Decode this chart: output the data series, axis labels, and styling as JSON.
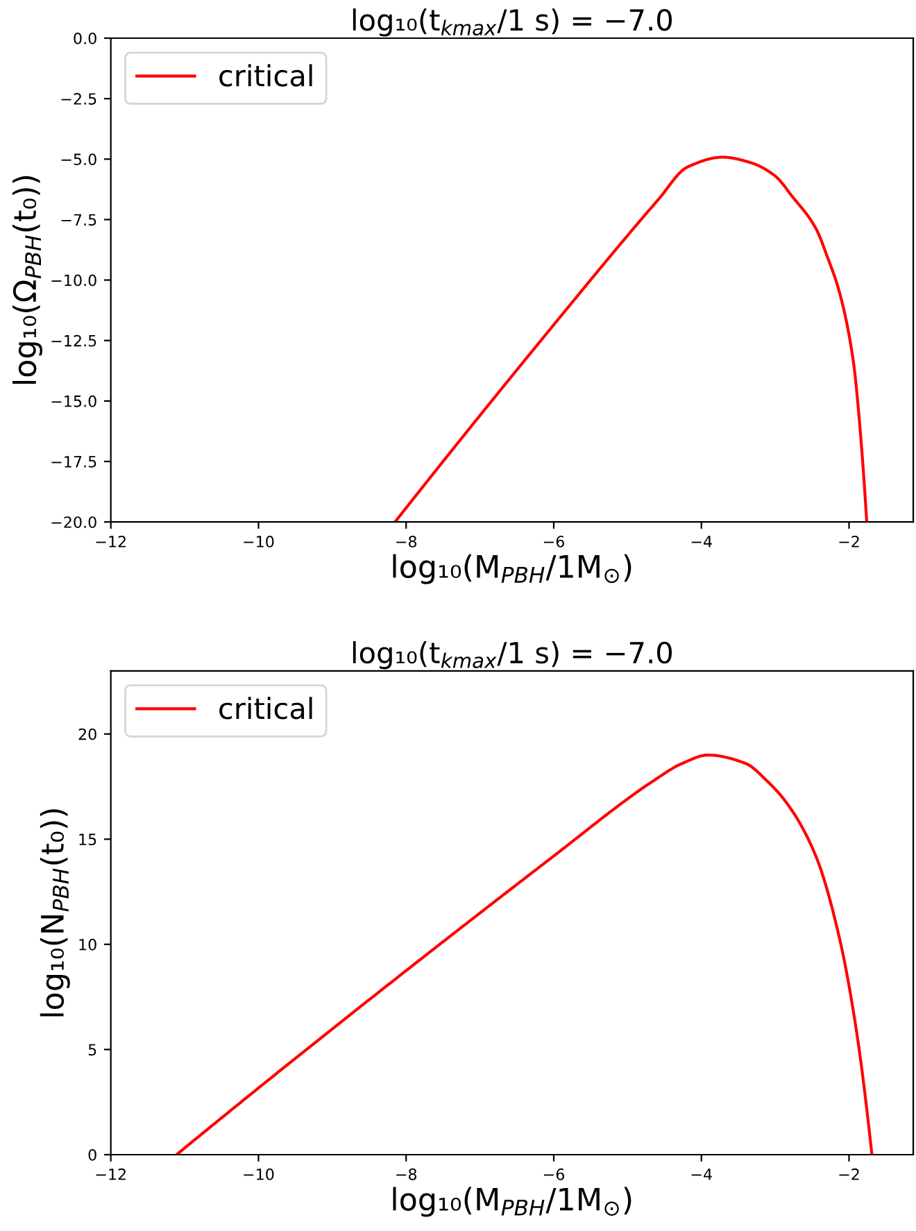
{
  "chart_data": [
    {
      "type": "line",
      "title": "log₁₀(t$_{kmax}$/1 s) = −7.0",
      "xlabel": "log₁₀(M$_{PBH}$/1M$_{⊙}$)",
      "ylabel": "log₁₀(Ω$_{PBH}$(t₀))",
      "series": [
        {
          "name": "critical",
          "color": "#ff0000",
          "x": [
            -8.15,
            -6.0,
            -4.58,
            -4.19,
            -3.71,
            -3.32,
            -3.0,
            -2.77,
            -2.45,
            -2.29,
            -2.13,
            -1.94,
            -1.86,
            -1.76
          ],
          "values": [
            -20.0,
            -11.85,
            -6.66,
            -5.33,
            -4.92,
            -5.16,
            -5.7,
            -6.54,
            -7.86,
            -9.07,
            -10.5,
            -13.4,
            -15.8,
            -20.0
          ]
        }
      ],
      "xlim": [
        -12,
        -1.13
      ],
      "ylim": [
        -20.0,
        0.0
      ],
      "xticks": [
        -12,
        -10,
        -8,
        -6,
        -4,
        -2
      ],
      "yticks": [
        {
          "value": -20,
          "label": "−20.0"
        },
        -17.5,
        {
          "value": -15,
          "label": "−15.0"
        },
        -12.5,
        {
          "value": -10,
          "label": "−10.0"
        },
        -7.5,
        {
          "value": -5,
          "label": "−5.0"
        },
        -2.5,
        {
          "value": 0,
          "label": "0.0"
        }
      ],
      "legend": "top left",
      "grid": false
    },
    {
      "type": "line",
      "title": "log₁₀(t$_{kmax}$/1 s) = −7.0",
      "xlabel": "log₁₀(M$_{PBH}$/1M$_{⊙}$)",
      "ylabel": "log₁₀(N$_{PBH}$(t₀))",
      "series": [
        {
          "name": "critical",
          "color": "#ff0000",
          "x": [
            -11.11,
            -6.0,
            -4.66,
            -4.26,
            -3.91,
            -3.4,
            -3.12,
            -2.84,
            -2.45,
            -2.13,
            -1.9,
            -1.69
          ],
          "values": [
            0,
            14.2,
            17.75,
            18.6,
            19.0,
            18.6,
            17.8,
            16.7,
            14.2,
            10.3,
            5.9,
            0
          ]
        }
      ],
      "xlim": [
        -12,
        -1.13
      ],
      "ylim": [
        0,
        23
      ],
      "xticks": [
        -12,
        -10,
        -8,
        -6,
        -4,
        -2
      ],
      "yticks": [
        0,
        5,
        10,
        15,
        20
      ],
      "legend": "top left",
      "grid": false
    }
  ]
}
